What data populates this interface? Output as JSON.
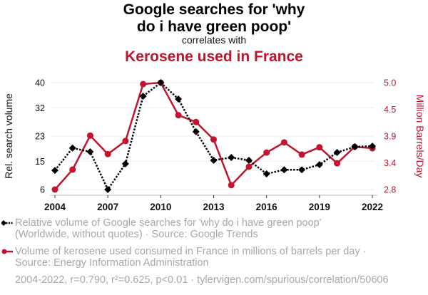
{
  "title": {
    "line1": "Google searches for 'why",
    "line2": "do i have green poop'",
    "connector": "correlates with",
    "secondary": "Kerosene used in France"
  },
  "colors": {
    "primary_series": "#000000",
    "secondary_series": "#c0142f",
    "legend_text": "#a8a8a8",
    "grid": "#eeeeee"
  },
  "legend": {
    "item1_line1": "Relative volume of Google searches for 'why do i have green poop'",
    "item1_line2": "(Worldwide, without quotes) · Source: Google Trends",
    "item2_line1": "Volume of kerosene used consumed in France in millions of barrels per day ·",
    "item2_line2": "Source: Energy Information Administration"
  },
  "footer": "2004-2022, r=0.790, r²=0.625, p<0.01 · tylervigen.com/spurious/correlation/50606",
  "chart_data": {
    "type": "line",
    "title": "Google searches for 'why do i have green poop' correlates with Kerosene used in France",
    "x": [
      2004,
      2005,
      2006,
      2007,
      2008,
      2009,
      2010,
      2011,
      2012,
      2013,
      2014,
      2015,
      2016,
      2017,
      2018,
      2019,
      2020,
      2021,
      2022
    ],
    "xlim": [
      2004,
      2022
    ],
    "xticks": [
      "2004",
      "2007",
      "2010",
      "2013",
      "2016",
      "2019",
      "2022"
    ],
    "xtick_values": [
      2004,
      2007,
      2010,
      2013,
      2016,
      2019,
      2022
    ],
    "grid": "horizontal",
    "series": [
      {
        "name": "Relative volume of Google searches for 'why do i have green poop'",
        "axis": "left",
        "ylabel": "Rel. search volume",
        "ylim": [
          6,
          40
        ],
        "yticks": [
          "6",
          "15",
          "23",
          "32",
          "40"
        ],
        "ytick_values": [
          6,
          15,
          23,
          32,
          40
        ],
        "marker": "diamond",
        "style": "dotted",
        "color": "#000000",
        "values": [
          12.1,
          19.2,
          18.0,
          6.0,
          14.2,
          35.7,
          40.0,
          34.8,
          24.4,
          15.3,
          16.2,
          15.3,
          11.0,
          12.3,
          12.3,
          13.9,
          17.8,
          19.6,
          19.8
        ]
      },
      {
        "name": "Volume of kerosene used consumed in France in millions of barrels per day",
        "axis": "right",
        "ylabel": "Million Barrels/Day",
        "ylim": [
          2.8,
          5.0
        ],
        "yticks": [
          "2.8",
          "3.4",
          "3.9",
          "4.5",
          "5.0"
        ],
        "ytick_values": [
          2.8,
          3.35,
          3.9,
          4.45,
          5.0
        ],
        "marker": "circle",
        "style": "solid",
        "color": "#c0142f",
        "values": [
          2.8,
          3.21,
          3.91,
          3.53,
          3.8,
          4.97,
          5.0,
          4.33,
          4.19,
          3.83,
          2.89,
          3.27,
          3.56,
          3.77,
          3.52,
          3.67,
          3.34,
          3.68,
          3.65
        ]
      }
    ]
  }
}
